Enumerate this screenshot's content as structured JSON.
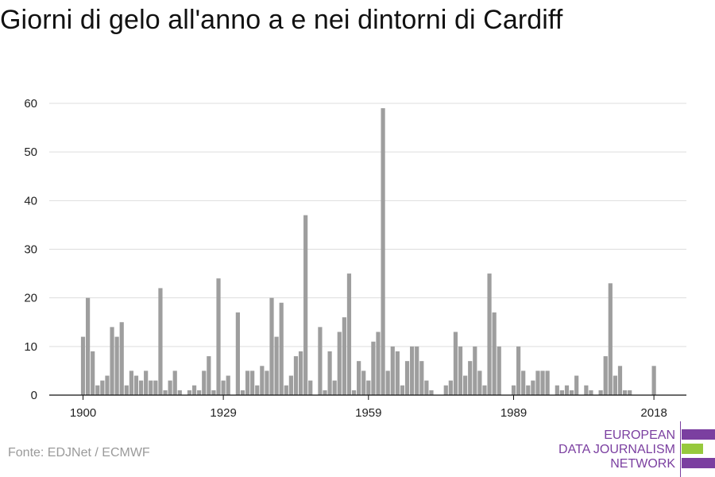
{
  "header": {
    "title": "Giorni di gelo all'anno a e nei dintorni di Cardiff"
  },
  "footer": {
    "source": "Fonte: EDJNet / ECMWF"
  },
  "logo": {
    "line1": "EUROPEAN",
    "line2": "DATA JOURNALISM",
    "line3": "NETWORK",
    "colors": {
      "purple": "#7b3fa0",
      "green": "#97c93d"
    }
  },
  "colors": {
    "bar": "#9e9e9e",
    "grid": "#dddddd",
    "axis": "#111111",
    "source_text": "#9a9a9a"
  },
  "chart_data": {
    "type": "bar",
    "title": "Giorni di gelo all'anno a e nei dintorni di Cardiff",
    "xlabel": "",
    "ylabel": "",
    "ylim": [
      0,
      60
    ],
    "yticks": [
      0,
      10,
      20,
      30,
      40,
      50,
      60
    ],
    "xticks": [
      1900,
      1929,
      1959,
      1989,
      2018
    ],
    "grid": true,
    "legend": "none",
    "x": [
      1900,
      1901,
      1902,
      1903,
      1904,
      1905,
      1906,
      1907,
      1908,
      1909,
      1910,
      1911,
      1912,
      1913,
      1914,
      1915,
      1916,
      1917,
      1918,
      1919,
      1920,
      1921,
      1922,
      1923,
      1924,
      1925,
      1926,
      1927,
      1928,
      1929,
      1930,
      1931,
      1932,
      1933,
      1934,
      1935,
      1936,
      1937,
      1938,
      1939,
      1940,
      1941,
      1942,
      1943,
      1944,
      1945,
      1946,
      1947,
      1948,
      1949,
      1950,
      1951,
      1952,
      1953,
      1954,
      1955,
      1956,
      1957,
      1958,
      1959,
      1960,
      1961,
      1962,
      1963,
      1964,
      1965,
      1966,
      1967,
      1968,
      1969,
      1970,
      1971,
      1972,
      1973,
      1974,
      1975,
      1976,
      1977,
      1978,
      1979,
      1980,
      1981,
      1982,
      1983,
      1984,
      1985,
      1986,
      1987,
      1988,
      1989,
      1990,
      1991,
      1992,
      1993,
      1994,
      1995,
      1996,
      1997,
      1998,
      1999,
      2000,
      2001,
      2002,
      2003,
      2004,
      2005,
      2006,
      2007,
      2008,
      2009,
      2010,
      2011,
      2012,
      2013,
      2014,
      2015,
      2016,
      2017,
      2018
    ],
    "values": [
      12,
      20,
      9,
      2,
      3,
      4,
      14,
      12,
      15,
      2,
      5,
      4,
      3,
      5,
      3,
      3,
      22,
      1,
      3,
      5,
      1,
      0,
      1,
      2,
      1,
      5,
      8,
      1,
      24,
      3,
      4,
      0,
      17,
      1,
      5,
      5,
      2,
      6,
      5,
      20,
      12,
      19,
      2,
      4,
      8,
      9,
      37,
      3,
      0,
      14,
      1,
      9,
      3,
      13,
      16,
      25,
      1,
      7,
      5,
      3,
      11,
      13,
      59,
      5,
      10,
      9,
      2,
      7,
      10,
      10,
      7,
      3,
      1,
      0,
      0,
      2,
      3,
      13,
      10,
      4,
      7,
      10,
      5,
      2,
      25,
      17,
      10,
      0,
      0,
      2,
      10,
      5,
      2,
      3,
      5,
      5,
      5,
      0,
      2,
      1,
      2,
      1,
      4,
      0,
      2,
      1,
      0,
      1,
      8,
      23,
      4,
      6,
      1,
      1,
      0,
      0,
      0,
      0,
      6
    ]
  }
}
